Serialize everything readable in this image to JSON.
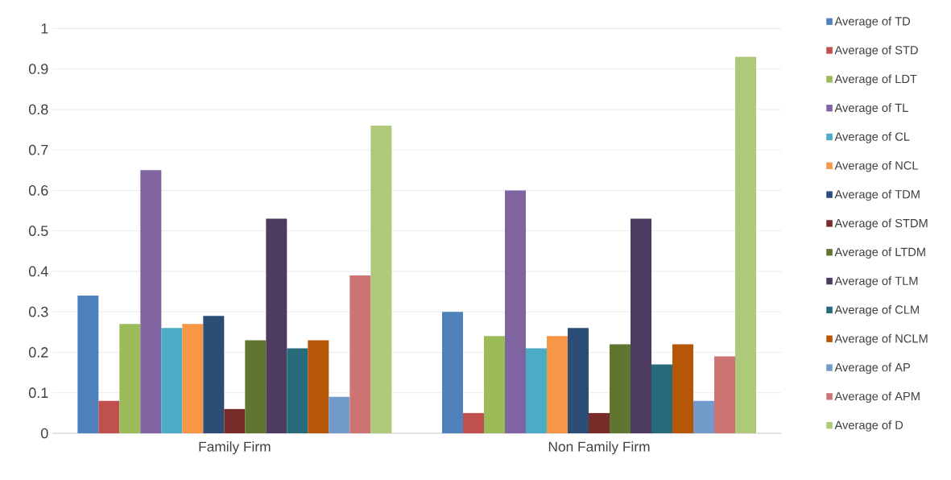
{
  "chart_data": {
    "type": "bar",
    "categories": [
      "Family Firm",
      "Non Family Firm"
    ],
    "series": [
      {
        "name": "Average of TD",
        "color": "#4f81bd",
        "values": [
          0.34,
          0.3
        ]
      },
      {
        "name": "Average of STD",
        "color": "#c0504d",
        "values": [
          0.08,
          0.05
        ]
      },
      {
        "name": "Average of LDT",
        "color": "#9bbb59",
        "values": [
          0.27,
          0.24
        ]
      },
      {
        "name": "Average of TL",
        "color": "#8064a2",
        "values": [
          0.65,
          0.6
        ]
      },
      {
        "name": "Average of CL",
        "color": "#4bacc6",
        "values": [
          0.26,
          0.21
        ]
      },
      {
        "name": "Average of NCL",
        "color": "#f79646",
        "values": [
          0.27,
          0.24
        ]
      },
      {
        "name": "Average of TDM",
        "color": "#2c4d75",
        "values": [
          0.29,
          0.26
        ]
      },
      {
        "name": "Average of STDM",
        "color": "#772c2a",
        "values": [
          0.06,
          0.05
        ]
      },
      {
        "name": "Average of LTDM",
        "color": "#5f7530",
        "values": [
          0.23,
          0.22
        ]
      },
      {
        "name": "Average of TLM",
        "color": "#4d3b62",
        "values": [
          0.53,
          0.53
        ]
      },
      {
        "name": "Average of CLM",
        "color": "#276a7c",
        "values": [
          0.21,
          0.17
        ]
      },
      {
        "name": "Average of NCLM",
        "color": "#b65708",
        "values": [
          0.23,
          0.22
        ]
      },
      {
        "name": "Average of AP",
        "color": "#729aca",
        "values": [
          0.09,
          0.08
        ]
      },
      {
        "name": "Average of APM",
        "color": "#cd7371",
        "values": [
          0.39,
          0.19
        ]
      },
      {
        "name": "Average of D",
        "color": "#afc97a",
        "values": [
          0.76,
          0.93
        ]
      }
    ],
    "ylim": [
      0,
      1
    ],
    "yticks": [
      0,
      0.1,
      0.2,
      0.3,
      0.4,
      0.5,
      0.6,
      0.7,
      0.8,
      0.9,
      1
    ],
    "grid": "y",
    "legend": "right"
  }
}
